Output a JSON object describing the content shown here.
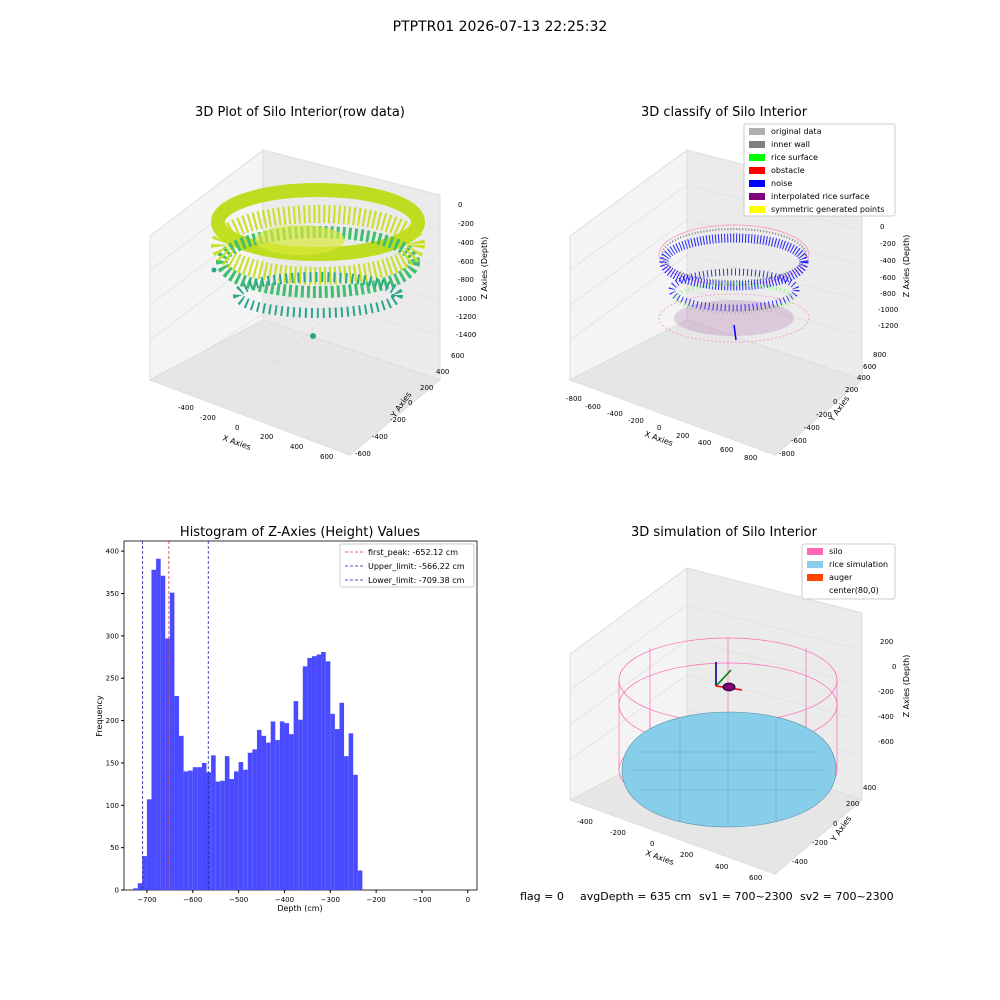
{
  "suptitle": "PTPTR01 2026-07-13 22:25:32",
  "status_line": {
    "flag": "flag = 0",
    "avg_depth": "avgDepth = 635 cm",
    "sv1": "sv1 = 700~2300",
    "sv2": "sv2 = 700~2300"
  },
  "colors": {
    "hist_bar": "#4a4aff",
    "first_peak_line": "#e03030",
    "limit_line": "#2020a0",
    "silo": "#ff69b4",
    "rice": "#87ceeb",
    "auger": "#ff4500",
    "noise": "#0000ff",
    "rice_surface": "#00ff00",
    "inner_wall": "#808080",
    "interpolated": "#800080",
    "symmetric": "#ffff00"
  },
  "chart_data": [
    {
      "type": "scatter",
      "title": "3D Plot of Silo Interior(row data)",
      "xlabel": "X Axies",
      "ylabel": "Y Axies",
      "zlabel": "Z Axies (Depth)",
      "x_ticks": [
        "-400",
        "-200",
        "0",
        "200",
        "400",
        "600"
      ],
      "y_ticks": [
        "-600",
        "-400",
        "-200",
        "0",
        "200",
        "400",
        "600"
      ],
      "z_ticks": [
        "0",
        "-200",
        "-400",
        "-600",
        "-800",
        "-1000",
        "-1200",
        "-1400"
      ],
      "xlim": [
        -550,
        650
      ],
      "ylim": [
        -650,
        650
      ],
      "zlim": [
        -1450,
        50
      ]
    },
    {
      "type": "scatter",
      "title": "3D classify of Silo Interior",
      "xlabel": "X Axies",
      "ylabel": "Y Axies",
      "zlabel": "Z Axies (Depth)",
      "x_ticks": [
        "-800",
        "-600",
        "-400",
        "-200",
        "0",
        "200",
        "400",
        "600",
        "800"
      ],
      "y_ticks": [
        "-800",
        "-600",
        "-400",
        "-200",
        "0",
        "200",
        "400",
        "600",
        "800"
      ],
      "z_ticks": [
        "0",
        "-200",
        "-400",
        "-600",
        "-800",
        "-1000",
        "-1200"
      ],
      "legend": [
        {
          "label": "original data",
          "color": "#b0b0b0"
        },
        {
          "label": "inner wall",
          "color": "#808080"
        },
        {
          "label": "rice surface",
          "color": "#00ff00"
        },
        {
          "label": "obstacle",
          "color": "#ff0000"
        },
        {
          "label": "noise",
          "color": "#0000ff"
        },
        {
          "label": "interpolated rice surface",
          "color": "#800080"
        },
        {
          "label": "symmetric generated points",
          "color": "#ffff00"
        }
      ],
      "legend_position": "top-right"
    },
    {
      "type": "bar",
      "title": "Histogram of Z-Axies (Height) Values",
      "xlabel": "Depth (cm)",
      "ylabel": "Frequency",
      "xlim": [
        -750,
        20
      ],
      "ylim": [
        0,
        412
      ],
      "x_ticks": [
        -700,
        -600,
        -500,
        -400,
        -300,
        -200,
        -100,
        0
      ],
      "y_ticks": [
        0,
        50,
        100,
        150,
        200,
        250,
        300,
        350,
        400
      ],
      "bin_start": -730,
      "bin_width": 10,
      "values": [
        2,
        8,
        40,
        107,
        378,
        391,
        371,
        297,
        351,
        229,
        182,
        140,
        141,
        145,
        145,
        150,
        139,
        159,
        128,
        129,
        158,
        131,
        140,
        151,
        142,
        162,
        166,
        189,
        182,
        174,
        199,
        177,
        199,
        197,
        184,
        223,
        201,
        264,
        274,
        276,
        278,
        281,
        270,
        208,
        190,
        221,
        158,
        185,
        136,
        23
      ],
      "vlines": [
        {
          "label": "first_peak: -652.12 cm",
          "x": -652.12,
          "color": "#e03030"
        },
        {
          "label": "Upper_limit: -566.22 cm",
          "x": -566.22,
          "color": "#2020a0"
        },
        {
          "label": "Lower_limit: -709.38 cm",
          "x": -709.38,
          "color": "#2020a0"
        }
      ],
      "legend_position": "top-right"
    },
    {
      "type": "scatter",
      "title": "3D simulation of Silo Interior",
      "xlabel": "X Axies",
      "ylabel": "Y Axies",
      "zlabel": "Z Axies (Depth)",
      "x_ticks": [
        "-400",
        "-200",
        "0",
        "200",
        "400",
        "600"
      ],
      "y_ticks": [
        "-400",
        "-200",
        "0",
        "200",
        "400"
      ],
      "z_ticks": [
        "200",
        "0",
        "-200",
        "-400",
        "-600"
      ],
      "legend": [
        {
          "label": "silo",
          "color": "#ff69b4"
        },
        {
          "label": "rice simulation",
          "color": "#87ceeb"
        },
        {
          "label": "auger",
          "color": "#ff4500"
        },
        {
          "label": "center(80,0)",
          "color": ""
        }
      ],
      "legend_position": "top-right"
    }
  ]
}
